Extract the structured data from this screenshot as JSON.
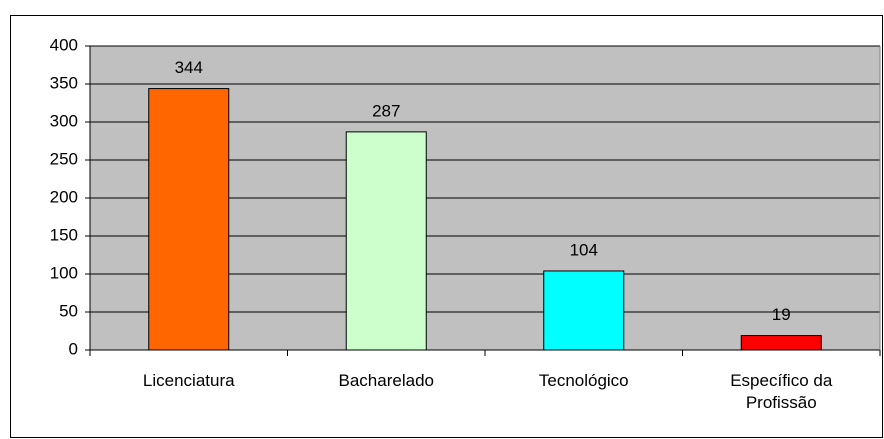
{
  "chart_data": {
    "type": "bar",
    "categories": [
      "Licenciatura",
      "Bacharelado",
      "Tecnológico",
      "Específico da Profissão"
    ],
    "values": [
      344,
      287,
      104,
      19
    ],
    "colors": [
      "#ff6600",
      "#ccffcc",
      "#00ffff",
      "#ff0000"
    ],
    "ylim": [
      0,
      400
    ],
    "yticks": [
      0,
      50,
      100,
      150,
      200,
      250,
      300,
      350,
      400
    ],
    "grid": true,
    "data_labels": true
  }
}
